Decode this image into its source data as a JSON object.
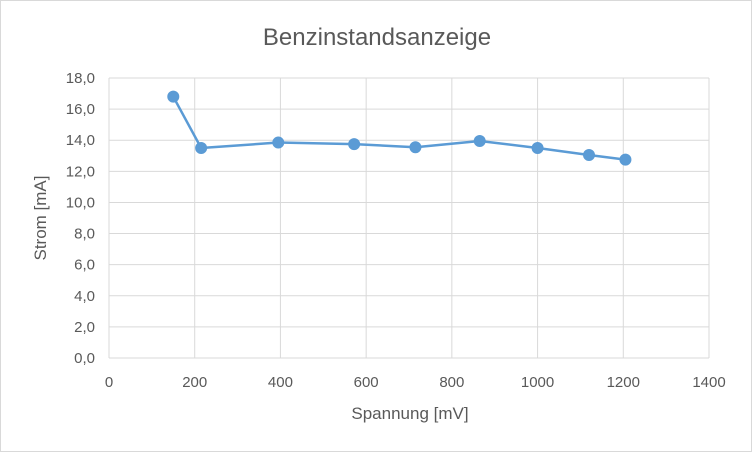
{
  "chart_data": {
    "type": "scatter",
    "title": "Benzinstandsanzeige",
    "xlabel": "Spannung [mV]",
    "ylabel": "Strom [mA]",
    "xlim": [
      0,
      1400
    ],
    "ylim": [
      0,
      18
    ],
    "x_ticks": [
      0,
      200,
      400,
      600,
      800,
      1000,
      1200,
      1400
    ],
    "x_tick_labels": [
      "0",
      "200",
      "400",
      "600",
      "800",
      "1000",
      "1200",
      "1400"
    ],
    "y_ticks": [
      0,
      2,
      4,
      6,
      8,
      10,
      12,
      14,
      16,
      18
    ],
    "y_tick_labels": [
      "0,0",
      "2,0",
      "4,0",
      "6,0",
      "8,0",
      "10,0",
      "12,0",
      "14,0",
      "16,0",
      "18,0"
    ],
    "grid": true,
    "lines_connecting_points": true,
    "series": [
      {
        "x": [
          150,
          215,
          395,
          572,
          715,
          865,
          1000,
          1120,
          1205
        ],
        "y": [
          16.8,
          13.5,
          13.85,
          13.75,
          13.55,
          13.95,
          13.5,
          13.05,
          12.75
        ],
        "color": "#5b9bd5"
      }
    ]
  }
}
